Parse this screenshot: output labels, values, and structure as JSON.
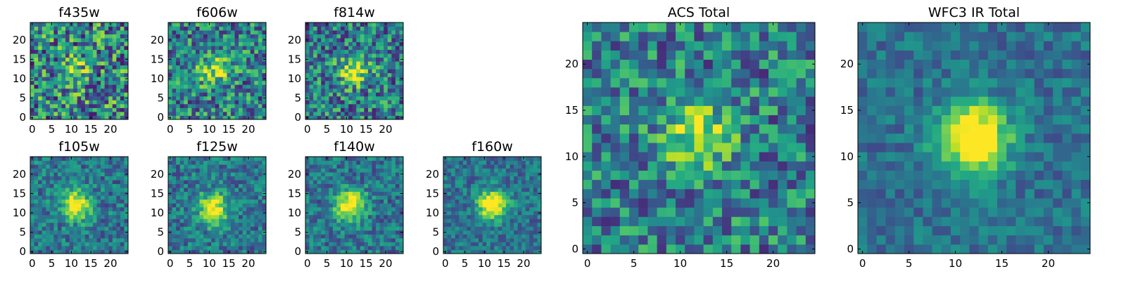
{
  "chart_data": [
    {
      "type": "heatmap",
      "title": "f435w",
      "grid_size": 25,
      "xticks": [
        0,
        5,
        10,
        15,
        20
      ],
      "yticks": [
        0,
        5,
        10,
        15,
        20
      ],
      "xlim": [
        -0.5,
        24.5
      ],
      "ylim": [
        -0.5,
        24.5
      ],
      "colormap": "viridis",
      "source_center": [
        11,
        12
      ],
      "source_amplitude": 0.25,
      "noise_level": 0.55
    },
    {
      "type": "heatmap",
      "title": "f606w",
      "grid_size": 25,
      "xticks": [
        0,
        5,
        10,
        15,
        20
      ],
      "yticks": [
        0,
        5,
        10,
        15,
        20
      ],
      "xlim": [
        -0.5,
        24.5
      ],
      "ylim": [
        -0.5,
        24.5
      ],
      "colormap": "viridis",
      "source_center": [
        11,
        12
      ],
      "source_amplitude": 0.45,
      "noise_level": 0.5
    },
    {
      "type": "heatmap",
      "title": "f814w",
      "grid_size": 25,
      "xticks": [
        0,
        5,
        10,
        15,
        20
      ],
      "yticks": [
        0,
        5,
        10,
        15,
        20
      ],
      "xlim": [
        -0.5,
        24.5
      ],
      "ylim": [
        -0.5,
        24.5
      ],
      "colormap": "viridis",
      "source_center": [
        12,
        12
      ],
      "source_amplitude": 0.55,
      "noise_level": 0.5
    },
    {
      "type": "heatmap",
      "title": "f105w",
      "grid_size": 25,
      "xticks": [
        0,
        5,
        10,
        15,
        20
      ],
      "yticks": [
        0,
        5,
        10,
        15,
        20
      ],
      "xlim": [
        -0.5,
        24.5
      ],
      "ylim": [
        -0.5,
        24.5
      ],
      "colormap": "viridis",
      "source_center": [
        11,
        12
      ],
      "source_amplitude": 0.7,
      "noise_level": 0.35
    },
    {
      "type": "heatmap",
      "title": "f125w",
      "grid_size": 25,
      "xticks": [
        0,
        5,
        10,
        15,
        20
      ],
      "yticks": [
        0,
        5,
        10,
        15,
        20
      ],
      "xlim": [
        -0.5,
        24.5
      ],
      "ylim": [
        -0.5,
        24.5
      ],
      "colormap": "viridis",
      "source_center": [
        11,
        11
      ],
      "source_amplitude": 0.7,
      "noise_level": 0.35
    },
    {
      "type": "heatmap",
      "title": "f140w",
      "grid_size": 25,
      "xticks": [
        0,
        5,
        10,
        15,
        20
      ],
      "yticks": [
        0,
        5,
        10,
        15,
        20
      ],
      "xlim": [
        -0.5,
        24.5
      ],
      "ylim": [
        -0.5,
        24.5
      ],
      "colormap": "viridis",
      "source_center": [
        11,
        12
      ],
      "source_amplitude": 0.75,
      "noise_level": 0.35
    },
    {
      "type": "heatmap",
      "title": "f160w",
      "grid_size": 25,
      "xticks": [
        0,
        5,
        10,
        15,
        20
      ],
      "yticks": [
        0,
        5,
        10,
        15,
        20
      ],
      "xlim": [
        -0.5,
        24.5
      ],
      "ylim": [
        -0.5,
        24.5
      ],
      "colormap": "viridis",
      "source_center": [
        12,
        12
      ],
      "source_amplitude": 0.8,
      "noise_level": 0.3
    },
    {
      "type": "heatmap",
      "title": "ACS Total",
      "grid_size": 25,
      "xticks": [
        0,
        5,
        10,
        15,
        20
      ],
      "yticks": [
        0,
        5,
        10,
        15,
        20
      ],
      "xlim": [
        -0.5,
        24.5
      ],
      "ylim": [
        -0.5,
        24.5
      ],
      "colormap": "viridis",
      "source_center": [
        12,
        12
      ],
      "source_amplitude": 0.5,
      "noise_level": 0.45
    },
    {
      "type": "heatmap",
      "title": "WFC3 IR Total",
      "grid_size": 25,
      "xticks": [
        0,
        5,
        10,
        15,
        20
      ],
      "yticks": [
        0,
        5,
        10,
        15,
        20
      ],
      "xlim": [
        -0.5,
        24.5
      ],
      "ylim": [
        -0.5,
        24.5
      ],
      "colormap": "viridis",
      "source_center": [
        12,
        12
      ],
      "source_amplitude": 0.85,
      "noise_level": 0.25
    }
  ]
}
